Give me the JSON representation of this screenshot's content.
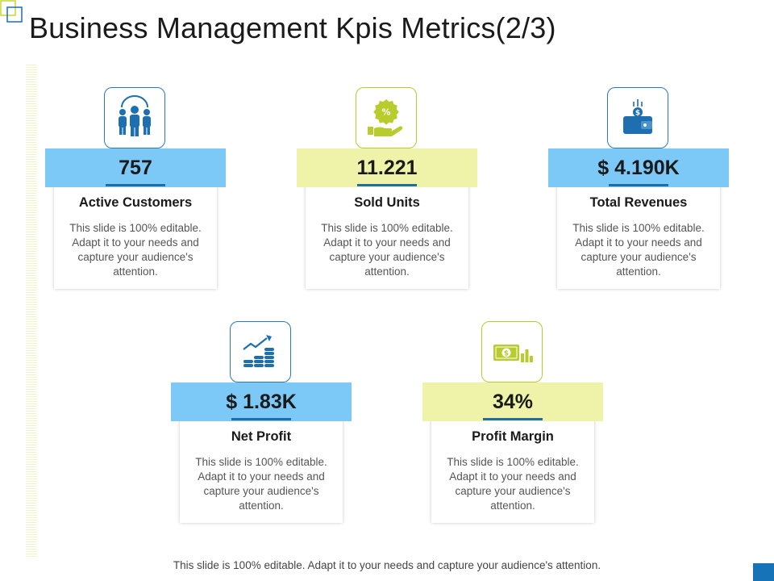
{
  "title": "Business Management Kpis Metrics(2/3)",
  "colors": {
    "blue_band": "#7cc8f7",
    "yellow_band": "#eef3a9",
    "icon_blue": "#1e6fb0",
    "icon_green": "#b8cc2e"
  },
  "kpis": [
    {
      "value": "757",
      "label": "Active Customers",
      "description": "This slide is 100% editable. Adapt it to your needs and capture your audience's attention.",
      "icon": "customers-icon"
    },
    {
      "value": "11.221",
      "label": "Sold Units",
      "description": "This slide is 100% editable. Adapt it to your needs and capture your audience's attention.",
      "icon": "discount-hand-icon"
    },
    {
      "value": "$ 4.190K",
      "label": "Total Revenues",
      "description": "This slide is 100% editable. Adapt it to your needs and capture your audience's attention.",
      "icon": "wallet-icon"
    },
    {
      "value": "$ 1.83K",
      "label": "Net Profit",
      "description": "This slide is 100% editable. Adapt it to your needs and capture your audience's attention.",
      "icon": "growth-coins-icon"
    },
    {
      "value": "34%",
      "label": "Profit Margin",
      "description": "This slide is 100% editable. Adapt it to your needs and capture your audience's attention.",
      "icon": "cash-chart-icon"
    }
  ],
  "footer": "This slide is 100% editable. Adapt it to your needs and capture your audience's attention."
}
